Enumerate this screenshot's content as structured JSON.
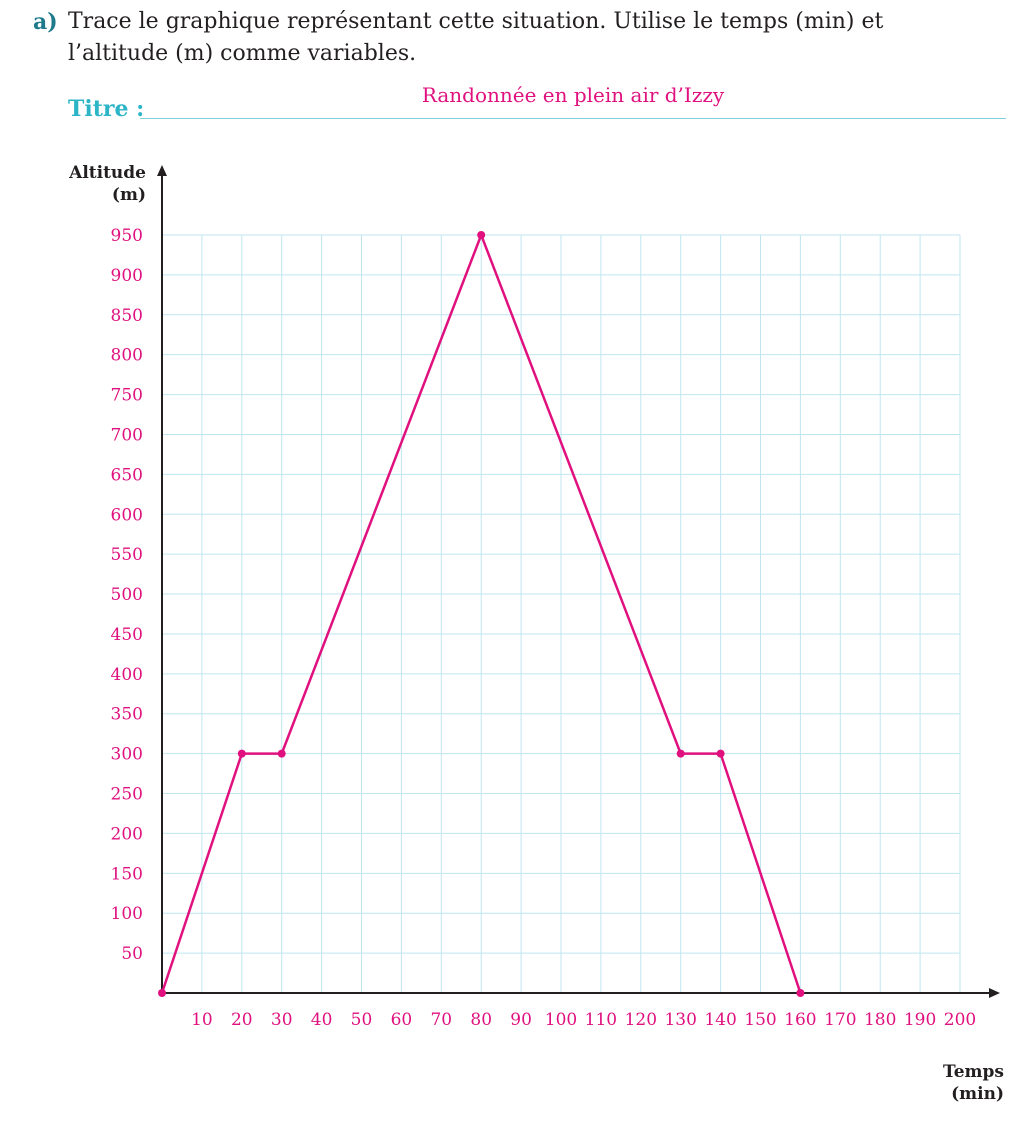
{
  "question": {
    "letter": "a)",
    "text": "Trace le graphique représentant cette situation. Utilise le temps (min) et l’altitude (m) comme variables."
  },
  "title_field": {
    "label": "Titre :",
    "value": "Randonnée en plein air d’Izzy"
  },
  "colors": {
    "accent": "#e0117f",
    "grid": "#bfe6f0",
    "title_label": "#2bb5c6",
    "question_letter": "#1f7a8c"
  },
  "chart_data": {
    "type": "line",
    "title": "Randonnée en plein air d’Izzy",
    "xlabel_line1": "Temps",
    "xlabel_line2": "(min)",
    "ylabel_line1": "Altitude",
    "ylabel_line2": "(m)",
    "xlim": [
      0,
      200
    ],
    "ylim": [
      0,
      950
    ],
    "x_ticks": [
      10,
      20,
      30,
      40,
      50,
      60,
      70,
      80,
      90,
      100,
      110,
      120,
      130,
      140,
      150,
      160,
      170,
      180,
      190,
      200
    ],
    "y_ticks": [
      50,
      100,
      150,
      200,
      250,
      300,
      350,
      400,
      450,
      500,
      550,
      600,
      650,
      700,
      750,
      800,
      850,
      900,
      950
    ],
    "grid": true,
    "series": [
      {
        "x": [
          0,
          20,
          30,
          80,
          130,
          140,
          160
        ],
        "y": [
          0,
          300,
          300,
          950,
          300,
          300,
          0
        ]
      }
    ]
  }
}
